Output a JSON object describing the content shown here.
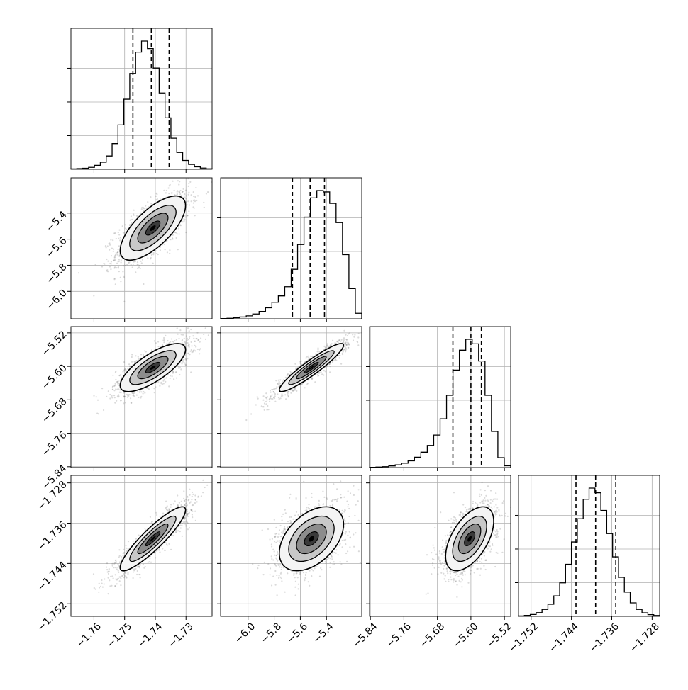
{
  "chart_data": {
    "type": "corner",
    "grid": true,
    "colors": {
      "ink": "#000000",
      "grid": "#b0b0b0",
      "scatter": "#555555"
    },
    "parameters": [
      {
        "range": [
          -1.7675,
          -1.7215
        ],
        "ticks": [
          -1.76,
          -1.75,
          -1.74,
          -1.73
        ],
        "tick_labels": [
          "−1.76",
          "−1.75",
          "−1.74",
          "−1.73"
        ],
        "mean": -1.7408,
        "sd": 0.0052,
        "quantiles": [
          -1.7473,
          -1.7413,
          -1.7355
        ]
      },
      {
        "range": [
          -6.21,
          -5.13
        ],
        "ticks": [
          -6.0,
          -5.8,
          -5.6,
          -5.4
        ],
        "tick_labels": [
          "−6.0",
          "−5.8",
          "−5.6",
          "−5.4"
        ],
        "mean": -5.515,
        "sd": 0.12,
        "quantiles": [
          -5.66,
          -5.525,
          -5.415
        ]
      },
      {
        "range": [
          -5.842,
          -5.505
        ],
        "ticks": [
          -5.84,
          -5.76,
          -5.68,
          -5.6,
          -5.52
        ],
        "tick_labels": [
          "−5.84",
          "−5.76",
          "−5.68",
          "−5.60",
          "−5.52"
        ],
        "mean": -5.603,
        "sd": 0.028,
        "quantiles": [
          -5.643,
          -5.6,
          -5.575
        ]
      },
      {
        "range": [
          -1.7545,
          -1.7265
        ],
        "ticks": [
          -1.752,
          -1.744,
          -1.736,
          -1.728
        ],
        "tick_labels": [
          "−1.752",
          "−1.744",
          "−1.736",
          "−1.728"
        ],
        "mean": -1.7391,
        "sd": 0.0031,
        "quantiles": [
          -1.7431,
          -1.7392,
          -1.7352
        ]
      }
    ],
    "histograms": [
      {
        "param": 0,
        "counts": [
          5,
          8,
          12,
          22,
          45,
          80,
          150,
          290,
          500,
          790,
          1080,
          1320,
          1445,
          1360,
          1140,
          860,
          580,
          350,
          190,
          100,
          55,
          28,
          14,
          6
        ]
      },
      {
        "param": 1,
        "counts": [
          3,
          6,
          12,
          20,
          32,
          52,
          80,
          120,
          180,
          250,
          350,
          540,
          810,
          1110,
          1320,
          1400,
          1385,
          1260,
          1050,
          700,
          330,
          60
        ]
      },
      {
        "param": 2,
        "counts": [
          3,
          6,
          10,
          18,
          30,
          48,
          75,
          115,
          170,
          245,
          360,
          540,
          800,
          1080,
          1300,
          1420,
          1370,
          1180,
          800,
          400,
          110,
          20
        ]
      },
      {
        "param": 3,
        "counts": [
          5,
          10,
          20,
          40,
          75,
          130,
          220,
          360,
          560,
          800,
          1050,
          1260,
          1380,
          1330,
          1140,
          890,
          640,
          420,
          260,
          145,
          75,
          38,
          18,
          9
        ]
      }
    ],
    "pairs": [
      {
        "x": 0,
        "y": 1,
        "rho": 0.7
      },
      {
        "x": 0,
        "y": 2,
        "rho": 0.75
      },
      {
        "x": 1,
        "y": 2,
        "rho": 0.93
      },
      {
        "x": 0,
        "y": 3,
        "rho": 0.9
      },
      {
        "x": 1,
        "y": 3,
        "rho": 0.45
      },
      {
        "x": 2,
        "y": 3,
        "rho": 0.55
      }
    ]
  }
}
